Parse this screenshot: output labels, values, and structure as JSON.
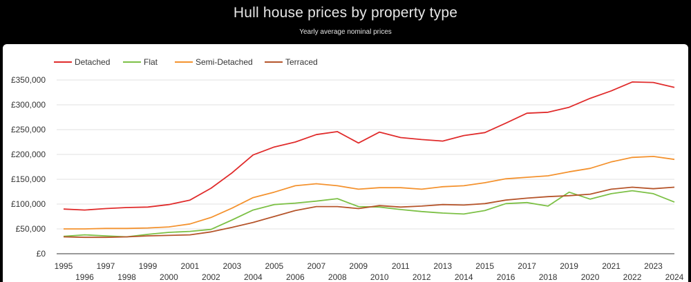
{
  "header": {
    "title": "Hull house prices by property type",
    "subtitle": "Yearly average nominal prices"
  },
  "chart_data": {
    "type": "line",
    "title": "Hull house prices by property type",
    "subtitle": "Yearly average nominal prices",
    "xlabel": "",
    "ylabel": "",
    "x": [
      1995,
      1996,
      1997,
      1998,
      1999,
      2000,
      2001,
      2002,
      2003,
      2004,
      2005,
      2006,
      2007,
      2008,
      2009,
      2010,
      2011,
      2012,
      2013,
      2014,
      2015,
      2016,
      2017,
      2018,
      2019,
      2020,
      2021,
      2022,
      2023,
      2024
    ],
    "x_tick_labels": [
      "1995",
      "1996",
      "1997",
      "1998",
      "1999",
      "2000",
      "2001",
      "2002",
      "2003",
      "2004",
      "2005",
      "2006",
      "2007",
      "2008",
      "2009",
      "2010",
      "2011",
      "2012",
      "2013",
      "2014",
      "2015",
      "2016",
      "2017",
      "2018",
      "2019",
      "2020",
      "2021",
      "2022",
      "2023",
      "2024"
    ],
    "ylim": [
      0,
      350000
    ],
    "y_ticks": [
      0,
      50000,
      100000,
      150000,
      200000,
      250000,
      300000,
      350000
    ],
    "y_tick_labels": [
      "£0",
      "£50,000",
      "£100,000",
      "£150,000",
      "£200,000",
      "£250,000",
      "£300,000",
      "£350,000"
    ],
    "grid": true,
    "legend_position": "top-left",
    "series": [
      {
        "name": "Detached",
        "color": "#e02b2b",
        "values": [
          90000,
          88000,
          91000,
          93000,
          94000,
          99000,
          108000,
          132000,
          163000,
          199000,
          215000,
          225000,
          240000,
          246000,
          223000,
          245000,
          234000,
          230000,
          227000,
          238000,
          244000,
          263000,
          283000,
          285000,
          295000,
          313000,
          328000,
          346000,
          345000,
          335000
        ]
      },
      {
        "name": "Flat",
        "color": "#7cc045",
        "values": [
          35000,
          38000,
          36000,
          34000,
          39000,
          43000,
          45000,
          49000,
          68000,
          88000,
          99000,
          102000,
          106000,
          111000,
          95000,
          94000,
          89000,
          85000,
          82000,
          80000,
          87000,
          101000,
          103000,
          96000,
          124000,
          110000,
          121000,
          127000,
          121000,
          104000
        ]
      },
      {
        "name": "Semi-Detached",
        "color": "#f4922e",
        "values": [
          50000,
          50000,
          51000,
          51000,
          52000,
          54000,
          60000,
          73000,
          92000,
          113000,
          124000,
          137000,
          141000,
          137000,
          130000,
          133000,
          133000,
          130000,
          135000,
          137000,
          143000,
          151000,
          154000,
          157000,
          165000,
          172000,
          185000,
          194000,
          196000,
          190000
        ]
      },
      {
        "name": "Terraced",
        "color": "#b5542a",
        "values": [
          34000,
          33000,
          33000,
          34000,
          36000,
          37000,
          38000,
          44000,
          53000,
          63000,
          75000,
          87000,
          95000,
          95000,
          91000,
          97000,
          94000,
          96000,
          99000,
          98000,
          101000,
          108000,
          112000,
          115000,
          117000,
          120000,
          130000,
          134000,
          131000,
          134000
        ]
      }
    ]
  }
}
